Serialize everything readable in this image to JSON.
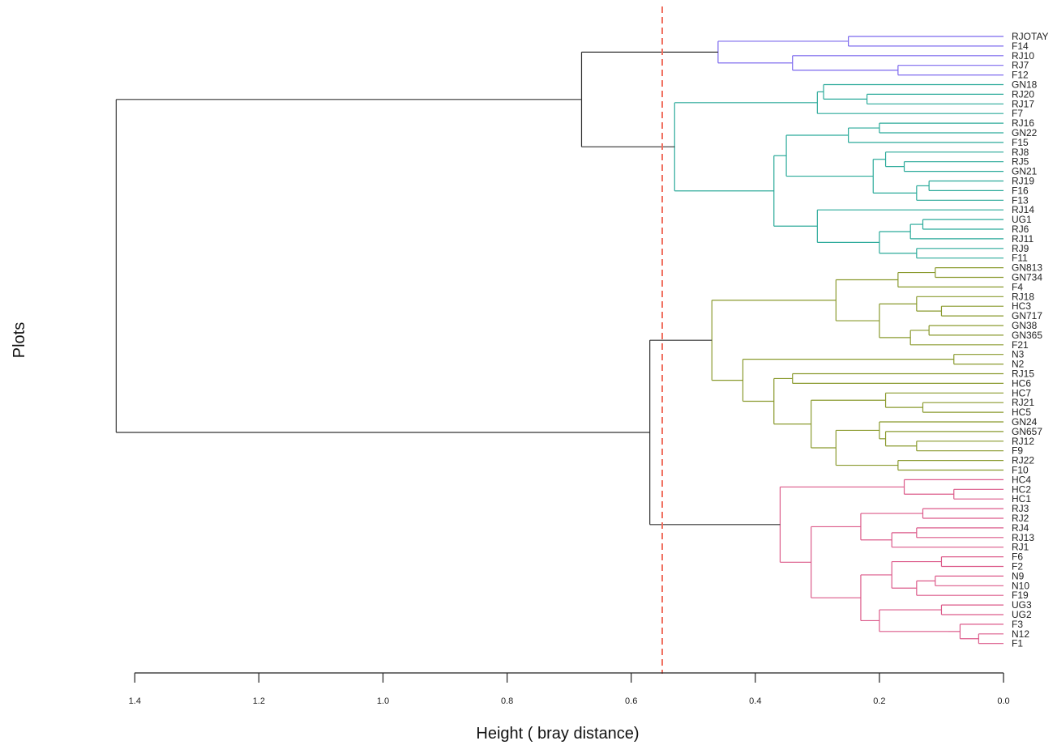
{
  "chart_data": {
    "type": "dendrogram",
    "orientation": "horizontal",
    "xlabel": "Height ( bray  distance)",
    "ylabel": "Plots",
    "xlim": [
      1.42,
      0.0
    ],
    "ticks": [
      1.4,
      1.2,
      1.0,
      0.8,
      0.6,
      0.4,
      0.2,
      0.0
    ],
    "tick_labels": [
      "1.4",
      "1.2",
      "1.0",
      "0.8",
      "0.6",
      "0.4",
      "0.2",
      "0.0"
    ],
    "cut_height": 0.55,
    "cut_line_color": "#F07060",
    "root_color": "#333333",
    "leaves": [
      "RJOTAY",
      "F14",
      "RJ10",
      "RJ7",
      "F12",
      "GN18",
      "RJ20",
      "RJ17",
      "F7",
      "RJ16",
      "GN22",
      "F15",
      "RJ8",
      "RJ5",
      "GN21",
      "RJ19",
      "F16",
      "F13",
      "RJ14",
      "UG1",
      "RJ6",
      "RJ11",
      "RJ9",
      "F11",
      "GN813",
      "GN734",
      "F4",
      "RJ18",
      "HC3",
      "GN717",
      "GN38",
      "GN365",
      "F21",
      "N3",
      "N2",
      "RJ15",
      "HC6",
      "HC7",
      "RJ21",
      "HC5",
      "GN24",
      "GN657",
      "RJ12",
      "F9",
      "RJ22",
      "F10",
      "HC4",
      "HC2",
      "HC1",
      "RJ3",
      "RJ2",
      "RJ4",
      "RJ13",
      "RJ1",
      "F6",
      "F2",
      "N9",
      "N10",
      "F19",
      "UG3",
      "UG2",
      "F3",
      "N12",
      "F1"
    ],
    "clusters": [
      {
        "color": "#7B68EE",
        "leaves": [
          "RJOTAY",
          "F14",
          "RJ10",
          "RJ7",
          "F12"
        ]
      },
      {
        "color": "#2BAA9A",
        "leaves": [
          "GN18",
          "RJ20",
          "RJ17",
          "F7",
          "RJ16",
          "GN22",
          "F15",
          "RJ8",
          "RJ5",
          "GN21",
          "RJ19",
          "F16",
          "F13",
          "RJ14",
          "UG1",
          "RJ6",
          "RJ11",
          "RJ9",
          "F11"
        ]
      },
      {
        "color": "#8A9A2E",
        "leaves": [
          "GN813",
          "GN734",
          "F4",
          "RJ18",
          "HC3",
          "GN717",
          "GN38",
          "GN365",
          "F21",
          "N3",
          "N2",
          "RJ15",
          "HC6",
          "HC7",
          "RJ21",
          "HC5",
          "GN24",
          "GN657",
          "RJ12",
          "F9",
          "RJ22",
          "F10"
        ]
      },
      {
        "color": "#DC5A8A",
        "leaves": [
          "HC4",
          "HC2",
          "HC1",
          "RJ3",
          "RJ2",
          "RJ4",
          "RJ13",
          "RJ1",
          "F6",
          "F2",
          "N9",
          "N10",
          "F19",
          "UG3",
          "UG2",
          "F3",
          "N12",
          "F1"
        ]
      }
    ],
    "tree": {
      "h": 1.43,
      "c": "#333333",
      "children": [
        {
          "h": 0.68,
          "c": "#333333",
          "children": [
            {
              "h": 0.46,
              "c": "#7B68EE",
              "children": [
                {
                  "h": 0.25,
                  "children": [
                    "RJOTAY",
                    "F14"
                  ]
                },
                {
                  "h": 0.34,
                  "children": [
                    "RJ10",
                    {
                      "h": 0.17,
                      "children": [
                        "RJ7",
                        "F12"
                      ]
                    }
                  ]
                }
              ]
            },
            {
              "h": 0.53,
              "c": "#2BAA9A",
              "children": [
                {
                  "h": 0.3,
                  "children": [
                    {
                      "h": 0.29,
                      "children": [
                        "GN18",
                        {
                          "h": 0.22,
                          "children": [
                            "RJ20",
                            "RJ17"
                          ]
                        }
                      ]
                    },
                    "F7"
                  ]
                },
                {
                  "h": 0.37,
                  "children": [
                    {
                      "h": 0.35,
                      "children": [
                        {
                          "h": 0.25,
                          "children": [
                            {
                              "h": 0.2,
                              "children": [
                                "RJ16",
                                "GN22"
                              ]
                            },
                            "F15"
                          ]
                        },
                        {
                          "h": 0.21,
                          "children": [
                            {
                              "h": 0.19,
                              "children": [
                                "RJ8",
                                {
                                  "h": 0.16,
                                  "children": [
                                    "RJ5",
                                    "GN21"
                                  ]
                                }
                              ]
                            },
                            {
                              "h": 0.14,
                              "children": [
                                {
                                  "h": 0.12,
                                  "children": [
                                    "RJ19",
                                    "F16"
                                  ]
                                },
                                "F13"
                              ]
                            }
                          ]
                        }
                      ]
                    },
                    {
                      "h": 0.3,
                      "children": [
                        "RJ14",
                        {
                          "h": 0.2,
                          "children": [
                            {
                              "h": 0.15,
                              "children": [
                                {
                                  "h": 0.13,
                                  "children": [
                                    "UG1",
                                    "RJ6"
                                  ]
                                },
                                "RJ11"
                              ]
                            },
                            {
                              "h": 0.14,
                              "children": [
                                "RJ9",
                                "F11"
                              ]
                            }
                          ]
                        }
                      ]
                    }
                  ]
                }
              ]
            }
          ]
        },
        {
          "h": 0.57,
          "c": "#333333",
          "children": [
            {
              "h": 0.47,
              "c": "#8A9A2E",
              "children": [
                {
                  "h": 0.27,
                  "children": [
                    {
                      "h": 0.17,
                      "children": [
                        {
                          "h": 0.11,
                          "children": [
                            "GN813",
                            "GN734"
                          ]
                        },
                        "F4"
                      ]
                    },
                    {
                      "h": 0.2,
                      "children": [
                        {
                          "h": 0.14,
                          "children": [
                            "RJ18",
                            {
                              "h": 0.1,
                              "children": [
                                "HC3",
                                "GN717"
                              ]
                            }
                          ]
                        },
                        {
                          "h": 0.15,
                          "children": [
                            {
                              "h": 0.12,
                              "children": [
                                "GN38",
                                "GN365"
                              ]
                            },
                            "F21"
                          ]
                        }
                      ]
                    }
                  ]
                },
                {
                  "h": 0.42,
                  "children": [
                    {
                      "h": 0.08,
                      "children": [
                        "N3",
                        "N2"
                      ]
                    },
                    {
                      "h": 0.37,
                      "children": [
                        {
                          "h": 0.34,
                          "children": [
                            "RJ15",
                            "HC6"
                          ]
                        },
                        {
                          "h": 0.31,
                          "children": [
                            {
                              "h": 0.19,
                              "children": [
                                "HC7",
                                {
                                  "h": 0.13,
                                  "children": [
                                    "RJ21",
                                    "HC5"
                                  ]
                                }
                              ]
                            },
                            {
                              "h": 0.27,
                              "children": [
                                {
                                  "h": 0.2,
                                  "children": [
                                    "GN24",
                                    {
                                      "h": 0.19,
                                      "children": [
                                        "GN657",
                                        {
                                          "h": 0.14,
                                          "children": [
                                            "RJ12",
                                            "F9"
                                          ]
                                        }
                                      ]
                                    }
                                  ]
                                },
                                {
                                  "h": 0.17,
                                  "children": [
                                    "RJ22",
                                    "F10"
                                  ]
                                }
                              ]
                            }
                          ]
                        }
                      ]
                    }
                  ]
                }
              ]
            },
            {
              "h": 0.36,
              "c": "#DC5A8A",
              "children": [
                {
                  "h": 0.16,
                  "children": [
                    "HC4",
                    {
                      "h": 0.08,
                      "children": [
                        "HC2",
                        "HC1"
                      ]
                    }
                  ]
                },
                {
                  "h": 0.31,
                  "children": [
                    {
                      "h": 0.23,
                      "children": [
                        {
                          "h": 0.13,
                          "children": [
                            "RJ3",
                            "RJ2"
                          ]
                        },
                        {
                          "h": 0.18,
                          "children": [
                            {
                              "h": 0.14,
                              "children": [
                                "RJ4",
                                "RJ13"
                              ]
                            },
                            "RJ1"
                          ]
                        }
                      ]
                    },
                    {
                      "h": 0.23,
                      "children": [
                        {
                          "h": 0.18,
                          "children": [
                            {
                              "h": 0.1,
                              "children": [
                                "F6",
                                "F2"
                              ]
                            },
                            {
                              "h": 0.14,
                              "children": [
                                {
                                  "h": 0.11,
                                  "children": [
                                    "N9",
                                    "N10"
                                  ]
                                },
                                "F19"
                              ]
                            }
                          ]
                        },
                        {
                          "h": 0.2,
                          "children": [
                            {
                              "h": 0.1,
                              "children": [
                                "UG3",
                                "UG2"
                              ]
                            },
                            {
                              "h": 0.09,
                              "children": [
                                {
                                  "h": 0.07,
                                  "children": [
                                    "F3",
                                    {
                                      "h": 0.04,
                                      "children": [
                                        "N12",
                                        "F1"
                                      ]
                                    }
                                  ]
                                }
                              ]
                            }
                          ]
                        }
                      ]
                    }
                  ]
                }
              ]
            }
          ]
        }
      ]
    }
  }
}
